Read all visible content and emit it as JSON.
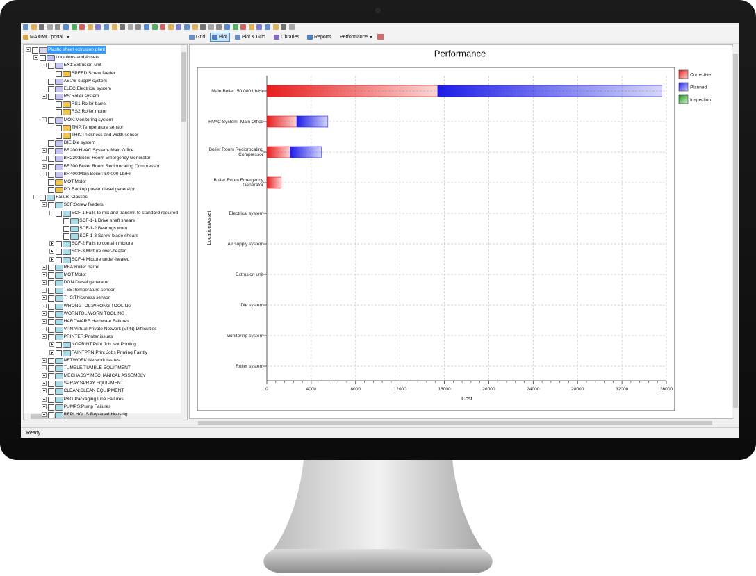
{
  "toolbar": {
    "portal": "MAXIMO portal",
    "tabs": [
      "Grid",
      "Plot",
      "Plot & Grid",
      "Libraries",
      "Reports",
      "Performance"
    ]
  },
  "tree": {
    "label": "Plastic sheet extrusion plant",
    "children": [
      {
        "label": "Locations and Assets",
        "children": [
          {
            "label": "EX1:Extrusion unit",
            "children": [
              {
                "label": "SPEED:Screw feeder"
              }
            ]
          },
          {
            "label": "AS:Air supply system"
          },
          {
            "label": "ELEC:Electrical system"
          },
          {
            "label": "RS:Roller system",
            "children": [
              {
                "label": "RS1:Roller barrel"
              },
              {
                "label": "RS2:Roller motor"
              }
            ]
          },
          {
            "label": "MON:Monitoring system",
            "children": [
              {
                "label": "TMP:Temperature sensor"
              },
              {
                "label": "THK:Thickness and width sensor"
              }
            ]
          },
          {
            "label": "DIE:Die system"
          },
          {
            "label": "BR200:HVAC System- Main Office",
            "children": []
          },
          {
            "label": "BR230:Boiler Room Emergency Generator",
            "children": []
          },
          {
            "label": "BR300:Boiler Room Reciprocating Compressor",
            "children": []
          },
          {
            "label": "BR400:Main Boiler: 50,000 Lb/Hr",
            "children": []
          },
          {
            "label": "MOT:Motor"
          },
          {
            "label": "PO:Backup power diesel generator"
          }
        ]
      },
      {
        "label": "Failure Classes",
        "children": [
          {
            "label": "SCF:Screw feeders",
            "children": [
              {
                "label": "SCF-1 Fails to mix and transmit to standard required",
                "children": [
                  {
                    "label": "SCF-1-1 Drive shaft shears"
                  },
                  {
                    "label": "SCF-1-2 Bearings worn"
                  },
                  {
                    "label": "SCF-1-3 Screw blade shears"
                  }
                ]
              },
              {
                "label": "SCF-2 Fails to contain mixture",
                "children": []
              },
              {
                "label": "SCF-3 Mixture over-heated",
                "children": []
              },
              {
                "label": "SCF-4 Mixture under-heated",
                "children": []
              }
            ]
          },
          {
            "label": "RBA:Roller barrel",
            "children": []
          },
          {
            "label": "MOT:Motor",
            "children": []
          },
          {
            "label": "DGN:Diesel generator",
            "children": []
          },
          {
            "label": "TSE:Temperature sensor",
            "children": []
          },
          {
            "label": "THS:Thickness sensor",
            "children": []
          },
          {
            "label": "WRONGTOL:WRONG TOOLING",
            "children": []
          },
          {
            "label": "WORNTOL:WORN TOOLING",
            "children": []
          },
          {
            "label": "HARDWARE:Hardware Failures",
            "children": []
          },
          {
            "label": "VPN:Virtual Private Network (VPN) Difficulties",
            "children": []
          },
          {
            "label": "PRINTER:Printer issues",
            "children": [
              {
                "label": "NOPRINT:Print Job Not Printing",
                "children": []
              },
              {
                "label": "FAINTPRN:Print Jobs Printing Faintly",
                "children": []
              }
            ]
          },
          {
            "label": "NETWORK:Network Issues",
            "children": []
          },
          {
            "label": "TUMBLE:TUMBLE EQUIPMENT",
            "children": []
          },
          {
            "label": "MECHASSY:MECHANICAL ASSEMBLY",
            "children": []
          },
          {
            "label": "SPRAY:SPRAY EQUIPMENT",
            "children": []
          },
          {
            "label": "CLEAN:CLEAN EQUIPMENT",
            "children": []
          },
          {
            "label": "PKG:Packaging Line Failures",
            "children": []
          },
          {
            "label": "PUMPS:Pump Failures",
            "children": []
          },
          {
            "label": "REPLHOUS:Replaced Housing",
            "children": []
          }
        ]
      }
    ]
  },
  "status": "Ready",
  "chart_data": {
    "type": "bar",
    "orientation": "horizontal",
    "stacked": true,
    "title": "Performance",
    "x_label": "Cost",
    "y_label": "Location/Asset",
    "categories": [
      "Main Boiler: 50,000 Lb/Hr",
      "HVAC System- Main Office",
      "Boiler Room Reciprocating Compressor",
      "Boiler Room Emergency Generator",
      "Electrical system",
      "Air supply system",
      "Extrusion unit",
      "Die system",
      "Monitoring system",
      "Roller system"
    ],
    "series": [
      {
        "name": "Corrective",
        "color": "#e81c1c",
        "values": [
          15400,
          2700,
          2100,
          1300,
          0,
          0,
          0,
          0,
          0,
          0
        ]
      },
      {
        "name": "Planned",
        "color": "#1c1ce8",
        "values": [
          20200,
          2800,
          2800,
          0,
          0,
          0,
          0,
          0,
          0,
          0
        ]
      },
      {
        "name": "Inspection",
        "color": "#1c9c1c",
        "values": [
          0,
          0,
          0,
          0,
          0,
          0,
          0,
          0,
          0,
          0
        ]
      }
    ],
    "xlim": [
      0,
      36000
    ],
    "xticks": [
      0,
      4000,
      8000,
      12000,
      16000,
      20000,
      24000,
      28000,
      32000,
      36000
    ],
    "grid": true,
    "legend": "right"
  }
}
